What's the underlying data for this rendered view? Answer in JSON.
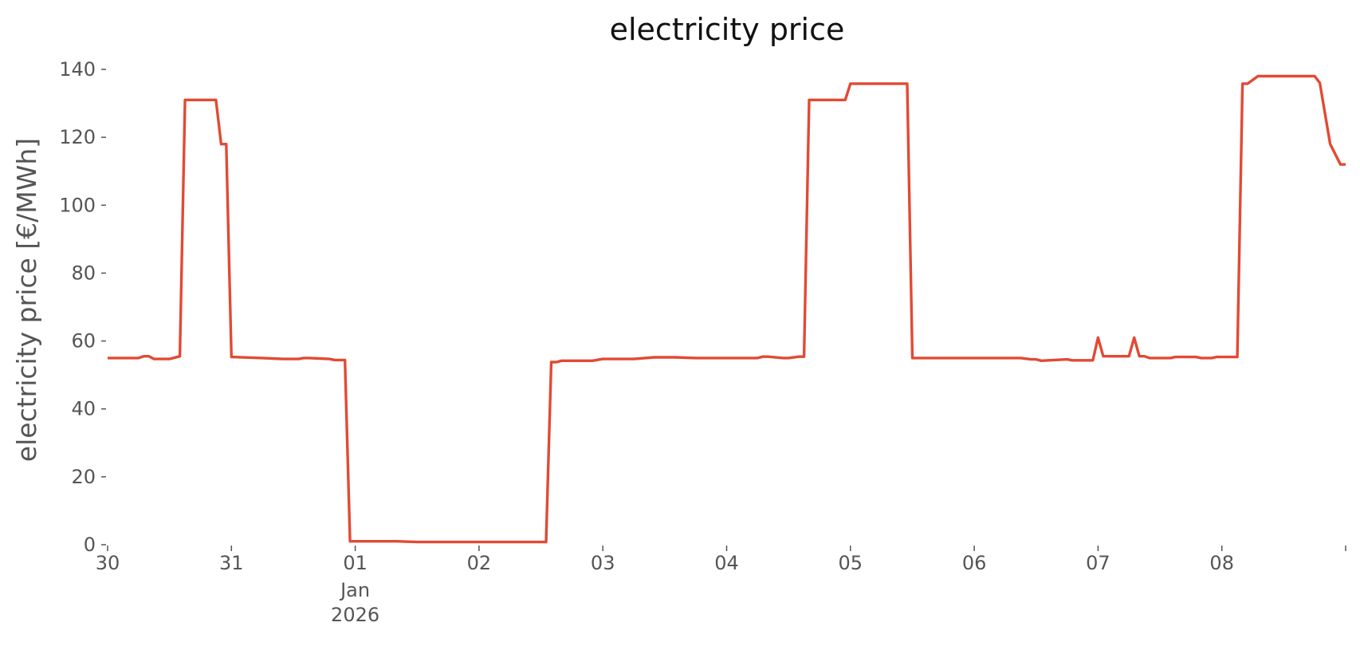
{
  "chart_data": {
    "type": "line",
    "title": "electricity price",
    "xlabel": "",
    "ylabel": "electricity price [€/MWh]",
    "grid": false,
    "legend": "none",
    "xlim": [
      "2025-12-30T00:00",
      "2026-01-09T00:00"
    ],
    "ylim": [
      0,
      140
    ],
    "y_ticks": [
      0,
      20,
      40,
      60,
      80,
      100,
      120,
      140
    ],
    "x_ticks": [
      {
        "at": "2025-12-30T00:00",
        "label": "30",
        "sublabel": ""
      },
      {
        "at": "2025-12-31T00:00",
        "label": "31",
        "sublabel": ""
      },
      {
        "at": "2026-01-01T00:00",
        "label": "01",
        "sublabel": "Jan\n2026"
      },
      {
        "at": "2026-01-02T00:00",
        "label": "02",
        "sublabel": ""
      },
      {
        "at": "2026-01-03T00:00",
        "label": "03",
        "sublabel": ""
      },
      {
        "at": "2026-01-04T00:00",
        "label": "04",
        "sublabel": ""
      },
      {
        "at": "2026-01-05T00:00",
        "label": "05",
        "sublabel": ""
      },
      {
        "at": "2026-01-06T00:00",
        "label": "06",
        "sublabel": ""
      },
      {
        "at": "2026-01-07T00:00",
        "label": "07",
        "sublabel": ""
      },
      {
        "at": "2026-01-08T00:00",
        "label": "08",
        "sublabel": ""
      },
      {
        "at": "2026-01-09T00:00",
        "label": "",
        "sublabel": ""
      }
    ],
    "series": [
      {
        "color": "#E24A33",
        "x": [
          "2025-12-30T00:00",
          "2025-12-30T06:00",
          "2025-12-30T07:00",
          "2025-12-30T08:00",
          "2025-12-30T09:00",
          "2025-12-30T12:00",
          "2025-12-30T14:00",
          "2025-12-30T15:00",
          "2025-12-30T16:00",
          "2025-12-30T21:00",
          "2025-12-30T22:00",
          "2025-12-30T23:00",
          "2025-12-31T00:00",
          "2025-12-31T06:00",
          "2025-12-31T10:00",
          "2025-12-31T13:00",
          "2025-12-31T14:00",
          "2025-12-31T15:00",
          "2025-12-31T19:00",
          "2025-12-31T20:00",
          "2025-12-31T22:00",
          "2025-12-31T23:00",
          "2026-01-01T00:00",
          "2026-01-01T08:00",
          "2026-01-01T12:00",
          "2026-01-01T18:00",
          "2026-01-02T12:00",
          "2026-01-02T13:00",
          "2026-01-02T14:00",
          "2026-01-02T15:00",
          "2026-01-02T16:00",
          "2026-01-02T22:00",
          "2026-01-03T00:00",
          "2026-01-03T06:00",
          "2026-01-03T10:00",
          "2026-01-03T14:00",
          "2026-01-03T18:00",
          "2026-01-04T00:00",
          "2026-01-04T06:00",
          "2026-01-04T07:00",
          "2026-01-04T08:00",
          "2026-01-04T11:00",
          "2026-01-04T12:00",
          "2026-01-04T14:00",
          "2026-01-04T15:00",
          "2026-01-04T16:00",
          "2026-01-04T20:00",
          "2026-01-04T23:00",
          "2026-01-05T00:00",
          "2026-01-05T06:00",
          "2026-01-05T09:00",
          "2026-01-05T11:00",
          "2026-01-05T12:00",
          "2026-01-05T18:00",
          "2026-01-06T00:00",
          "2026-01-06T06:00",
          "2026-01-06T09:00",
          "2026-01-06T11:00",
          "2026-01-06T12:00",
          "2026-01-06T13:00",
          "2026-01-06T18:00",
          "2026-01-06T19:00",
          "2026-01-06T22:00",
          "2026-01-06T23:00",
          "2026-01-07T00:00",
          "2026-01-07T01:00",
          "2026-01-07T06:00",
          "2026-01-07T07:00",
          "2026-01-07T08:00",
          "2026-01-07T09:00",
          "2026-01-07T10:00",
          "2026-01-07T11:00",
          "2026-01-07T14:00",
          "2026-01-07T15:00",
          "2026-01-07T19:00",
          "2026-01-07T20:00",
          "2026-01-07T22:00",
          "2026-01-07T23:00",
          "2026-01-08T03:00",
          "2026-01-08T04:00",
          "2026-01-08T05:00",
          "2026-01-08T07:00",
          "2026-01-08T09:00",
          "2026-01-08T14:00",
          "2026-01-08T18:00",
          "2026-01-08T19:00",
          "2026-01-08T21:00",
          "2026-01-08T23:00",
          "2026-01-09T00:00"
        ],
        "y": [
          55,
          55,
          55.5,
          55.5,
          54.7,
          54.7,
          55.5,
          131,
          131,
          131,
          118,
          118,
          55.3,
          55,
          54.7,
          54.7,
          55,
          55,
          54.7,
          54.4,
          54.4,
          1,
          1,
          1,
          0.8,
          0.8,
          0.8,
          0.8,
          53.8,
          53.8,
          54.2,
          54.2,
          54.7,
          54.7,
          55.2,
          55.2,
          55,
          55,
          55,
          55.4,
          55.4,
          55,
          55,
          55.4,
          55.4,
          131,
          131,
          131,
          135.8,
          135.8,
          135.8,
          135.8,
          55,
          55,
          55,
          55,
          55,
          54.6,
          54.6,
          54.2,
          54.6,
          54.3,
          54.3,
          54.3,
          61,
          55.5,
          55.5,
          61,
          55.5,
          55.5,
          55,
          55,
          55,
          55.3,
          55.3,
          55,
          55,
          55.3,
          55.3,
          135.8,
          135.8,
          138,
          138,
          138,
          138,
          136,
          118,
          112,
          112
        ]
      }
    ]
  }
}
